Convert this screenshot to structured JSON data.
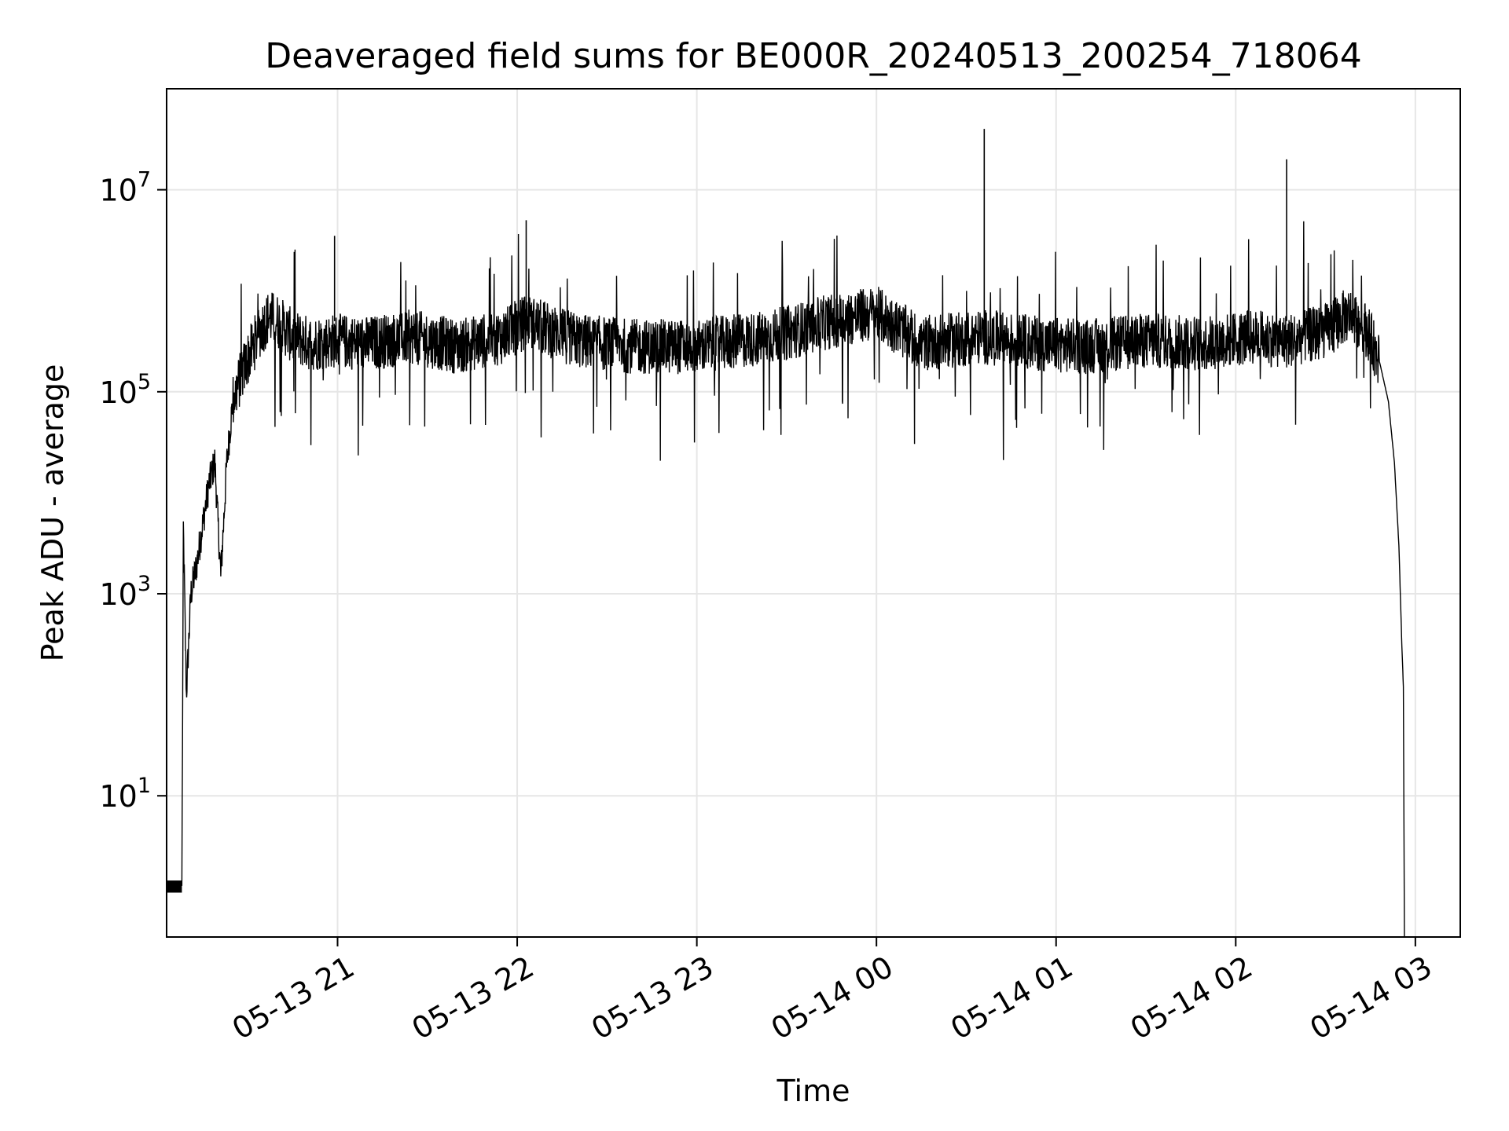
{
  "chart_data": {
    "type": "line",
    "title": "Deaveraged field sums for BE000R_20240513_200254_718064",
    "xlabel": "Time",
    "ylabel": "Peak ADU - average",
    "yscale": "log",
    "ylim": [
      0.4,
      100000000
    ],
    "xlim": [
      "2024-05-13 20:02:54",
      "2024-05-14 03:15:00"
    ],
    "grid": true,
    "line_color": "#000000",
    "grid_color": "#e6e6e6",
    "x_ticks": [
      {
        "value": "2024-05-13 21:00",
        "label": "05-13 21"
      },
      {
        "value": "2024-05-13 22:00",
        "label": "05-13 22"
      },
      {
        "value": "2024-05-13 23:00",
        "label": "05-13 23"
      },
      {
        "value": "2024-05-14 00:00",
        "label": "05-14 00"
      },
      {
        "value": "2024-05-14 01:00",
        "label": "05-14 01"
      },
      {
        "value": "2024-05-14 02:00",
        "label": "05-14 02"
      },
      {
        "value": "2024-05-14 03:00",
        "label": "05-14 03"
      }
    ],
    "y_ticks": [
      {
        "value": 10,
        "base": "10",
        "exp": "1"
      },
      {
        "value": 1000,
        "base": "10",
        "exp": "3"
      },
      {
        "value": 100000,
        "base": "10",
        "exp": "5"
      },
      {
        "value": 10000000,
        "base": "10",
        "exp": "7"
      }
    ],
    "series": [
      {
        "values_fn": "generated",
        "x": [
          "2024-05-13 20:02:54",
          "2024-05-13 20:08:00",
          "2024-05-13 20:08:30",
          "2024-05-13 20:09:30",
          "2024-05-13 20:11:00",
          "2024-05-13 20:13:00",
          "2024-05-13 20:15:00",
          "2024-05-13 20:17:00",
          "2024-05-13 20:19:00",
          "2024-05-13 20:21:00",
          "2024-05-13 20:23:00",
          "2024-05-13 20:25:00",
          "2024-05-13 20:28:00",
          "2024-05-13 20:31:00",
          "2024-05-13 20:34:00",
          "2024-05-13 20:37:00",
          "2024-05-13 20:40:00",
          "2024-05-13 20:45:00",
          "2024-05-13 20:51:00",
          "2024-05-13 20:59:00",
          "2024-05-13 21:10:00",
          "2024-05-13 21:25:00",
          "2024-05-13 21:40:00",
          "2024-05-13 21:55:00",
          "2024-05-13 22:03:00",
          "2024-05-13 22:20:00",
          "2024-05-13 22:40:00",
          "2024-05-13 23:00:00",
          "2024-05-13 23:25:00",
          "2024-05-13 23:45:00",
          "2024-05-14 00:00:00",
          "2024-05-14 00:15:00",
          "2024-05-14 00:36:00",
          "2024-05-14 00:55:00",
          "2024-05-14 01:10:00",
          "2024-05-14 01:30:00",
          "2024-05-14 01:50:00",
          "2024-05-14 02:05:00",
          "2024-05-14 02:17:00",
          "2024-05-14 02:30:00",
          "2024-05-14 02:38:00",
          "2024-05-14 02:44:00",
          "2024-05-14 02:48:00",
          "2024-05-14 02:51:00",
          "2024-05-14 02:53:00",
          "2024-05-14 02:54:30",
          "2024-05-14 02:55:30",
          "2024-05-14 02:56:00",
          "2024-05-14 02:56:20"
        ],
        "y": [
          1.3,
          1.3,
          4500,
          100,
          1000,
          2000,
          5000,
          12000,
          20000,
          1500,
          20000,
          80000,
          150000,
          250000,
          400000,
          550000,
          500000,
          350000,
          300000,
          320000,
          300000,
          350000,
          280000,
          350000,
          500000,
          320000,
          280000,
          280000,
          350000,
          500000,
          600000,
          300000,
          350000,
          300000,
          280000,
          320000,
          300000,
          350000,
          320000,
          400000,
          600000,
          400000,
          200000,
          80000,
          20000,
          3000,
          300,
          120,
          0.4
        ],
        "spikes": [
          {
            "x": "2024-05-13 20:59:00",
            "y": 3500000
          },
          {
            "x": "2024-05-13 22:03:00",
            "y": 5000000
          },
          {
            "x": "2024-05-14 00:36:00",
            "y": 40000000
          },
          {
            "x": "2024-05-14 02:17:00",
            "y": 20000000
          }
        ]
      }
    ]
  }
}
